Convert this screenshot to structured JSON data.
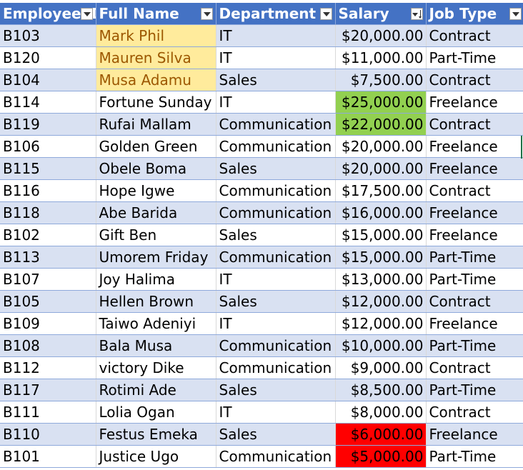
{
  "colors": {
    "header_bg": "#4472C4",
    "band_bg": "#D9E1F2",
    "highlight_yellow_bg": "#FFEB9C",
    "highlight_yellow_text": "#9C5700",
    "highlight_green": "#92D050",
    "highlight_red": "#FF0000"
  },
  "columns": [
    {
      "label": "Employee ID",
      "filter_icon": "filter-dropdown-icon"
    },
    {
      "label": "Full Name",
      "filter_icon": "filter-dropdown-icon"
    },
    {
      "label": "Department",
      "filter_icon": "filter-dropdown-icon"
    },
    {
      "label": "Salary",
      "filter_icon": "sort-descending-filter-icon"
    },
    {
      "label": "Job Type",
      "filter_icon": "filter-dropdown-icon"
    }
  ],
  "rows": [
    {
      "id": "B103",
      "name": "Mark Phil",
      "dept": "IT",
      "salary": "$20,000.00",
      "type": "Contract"
    },
    {
      "id": "B120",
      "name": "Mauren Silva",
      "dept": "IT",
      "salary": "$11,000.00",
      "type": "Part-Time"
    },
    {
      "id": "B104",
      "name": "Musa Adamu",
      "dept": "Sales",
      "salary": "$7,500.00",
      "type": "Contract"
    },
    {
      "id": "B114",
      "name": "Fortune Sunday",
      "dept": "IT",
      "salary": "$25,000.00",
      "type": "Freelance"
    },
    {
      "id": "B119",
      "name": "Rufai Mallam",
      "dept": "Communication",
      "salary": "$22,000.00",
      "type": "Contract"
    },
    {
      "id": "B106",
      "name": "Golden Green",
      "dept": "Communication",
      "salary": "$20,000.00",
      "type": "Freelance"
    },
    {
      "id": "B115",
      "name": "Obele Boma",
      "dept": "Sales",
      "salary": "$20,000.00",
      "type": "Freelance"
    },
    {
      "id": "B116",
      "name": "Hope Igwe",
      "dept": "Communication",
      "salary": "$17,500.00",
      "type": "Contract"
    },
    {
      "id": "B118",
      "name": "Abe Barida",
      "dept": "Communication",
      "salary": "$16,000.00",
      "type": "Freelance"
    },
    {
      "id": "B102",
      "name": "Gift Ben",
      "dept": "Sales",
      "salary": "$15,000.00",
      "type": "Freelance"
    },
    {
      "id": "B113",
      "name": "Umorem Friday",
      "dept": "Communication",
      "salary": "$15,000.00",
      "type": "Part-Time"
    },
    {
      "id": "B107",
      "name": "Joy Halima",
      "dept": "IT",
      "salary": "$13,000.00",
      "type": "Part-Time"
    },
    {
      "id": "B105",
      "name": "Hellen Brown",
      "dept": "Sales",
      "salary": "$12,000.00",
      "type": "Contract"
    },
    {
      "id": "B109",
      "name": "Taiwo Adeniyi",
      "dept": "IT",
      "salary": "$12,000.00",
      "type": "Freelance"
    },
    {
      "id": "B108",
      "name": "Bala Musa",
      "dept": "Communication",
      "salary": "$10,000.00",
      "type": "Part-Time"
    },
    {
      "id": "B112",
      "name": "victory Dike",
      "dept": "Communication",
      "salary": "$9,000.00",
      "type": "Contract"
    },
    {
      "id": "B117",
      "name": "Rotimi Ade",
      "dept": "Sales",
      "salary": "$8,500.00",
      "type": "Part-Time"
    },
    {
      "id": "B111",
      "name": "Lolia Ogan",
      "dept": "IT",
      "salary": "$8,000.00",
      "type": "Contract"
    },
    {
      "id": "B110",
      "name": "Festus Emeka",
      "dept": "Sales",
      "salary": "$6,000.00",
      "type": "Freelance"
    },
    {
      "id": "B101",
      "name": "Justice Ugo",
      "dept": "Communication",
      "salary": "$5,000.00",
      "type": "Part-Time"
    }
  ],
  "highlights": {
    "name_yellow_rows": [
      0,
      1,
      2
    ],
    "salary_green_rows": [
      3,
      4
    ],
    "salary_red_rows": [
      18,
      19
    ]
  }
}
